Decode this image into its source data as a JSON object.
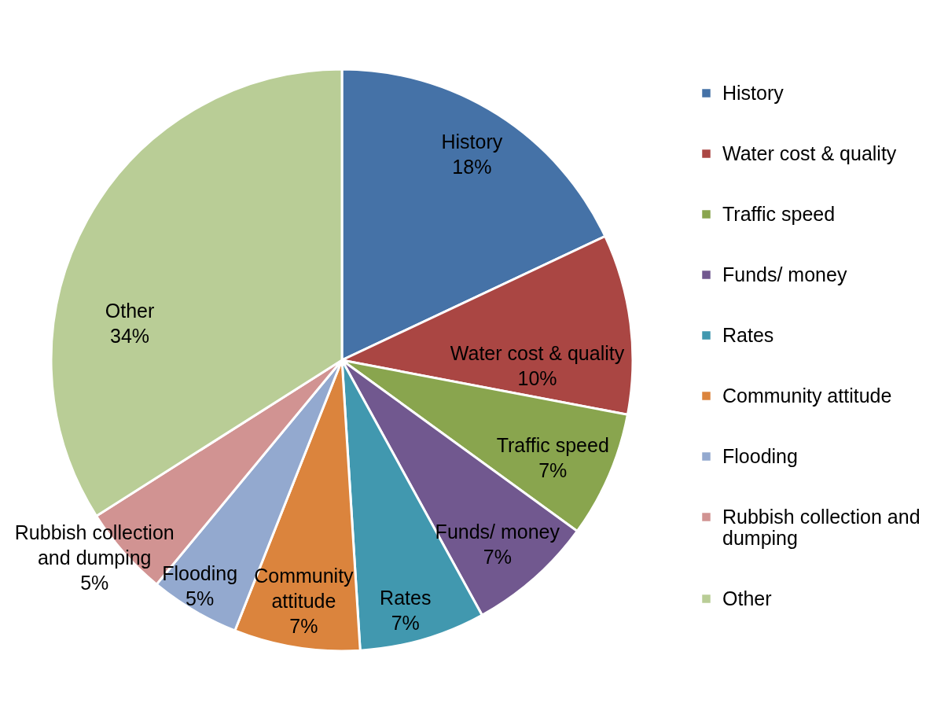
{
  "chart_data": {
    "type": "pie",
    "categories": [
      "History",
      "Water cost & quality",
      "Traffic speed",
      "Funds/ money",
      "Rates",
      "Community attitude",
      "Flooding",
      "Rubbish collection and dumping",
      "Other"
    ],
    "values": [
      18,
      10,
      7,
      7,
      7,
      7,
      5,
      5,
      34
    ],
    "value_labels": [
      "18%",
      "10%",
      "7%",
      "7%",
      "7%",
      "7%",
      "5%",
      "5%",
      "34%"
    ],
    "colors": [
      "#4572a7",
      "#aa4643",
      "#89a54e",
      "#71588f",
      "#4198af",
      "#db843d",
      "#93a9cf",
      "#d19392",
      "#b9cd96"
    ],
    "legend": "right"
  }
}
